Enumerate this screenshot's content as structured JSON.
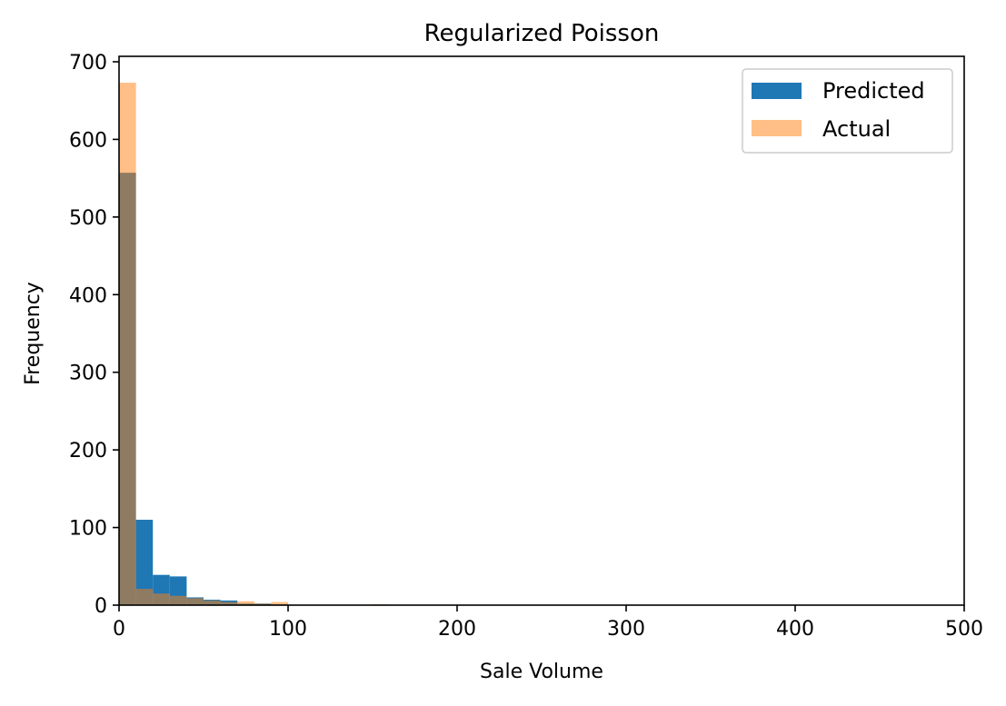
{
  "chart_data": {
    "type": "bar",
    "title": "Regularized Poisson",
    "xlabel": "Sale Volume",
    "ylabel": "Frequency",
    "xlim": [
      0,
      500
    ],
    "ylim": [
      0,
      707
    ],
    "xticks": [
      0,
      100,
      200,
      300,
      400,
      500
    ],
    "yticks": [
      0,
      100,
      200,
      300,
      400,
      500,
      600,
      700
    ],
    "grid": false,
    "legend_position": "top-right",
    "series": [
      {
        "name": "Predicted",
        "color": "#1f77b4",
        "opacity": 1.0,
        "bin_width": 10,
        "bins": [
          {
            "x0": 0,
            "x1": 10,
            "count": 557
          },
          {
            "x0": 10,
            "x1": 20,
            "count": 110
          },
          {
            "x0": 20,
            "x1": 30,
            "count": 39
          },
          {
            "x0": 30,
            "x1": 40,
            "count": 37
          },
          {
            "x0": 40,
            "x1": 50,
            "count": 10
          },
          {
            "x0": 50,
            "x1": 60,
            "count": 7
          },
          {
            "x0": 60,
            "x1": 70,
            "count": 6
          },
          {
            "x0": 70,
            "x1": 80,
            "count": 2
          },
          {
            "x0": 80,
            "x1": 90,
            "count": 2
          },
          {
            "x0": 90,
            "x1": 100,
            "count": 1
          }
        ]
      },
      {
        "name": "Actual",
        "color": "#ff7f0e",
        "opacity": 0.5,
        "bin_width": 10,
        "bins": [
          {
            "x0": 0,
            "x1": 10,
            "count": 673
          },
          {
            "x0": 10,
            "x1": 20,
            "count": 21
          },
          {
            "x0": 20,
            "x1": 30,
            "count": 15
          },
          {
            "x0": 30,
            "x1": 40,
            "count": 12
          },
          {
            "x0": 40,
            "x1": 50,
            "count": 9
          },
          {
            "x0": 50,
            "x1": 60,
            "count": 6
          },
          {
            "x0": 60,
            "x1": 70,
            "count": 4
          },
          {
            "x0": 70,
            "x1": 80,
            "count": 5
          },
          {
            "x0": 80,
            "x1": 90,
            "count": 2
          },
          {
            "x0": 90,
            "x1": 100,
            "count": 4
          },
          {
            "x0": 150,
            "x1": 160,
            "count": 1
          }
        ]
      }
    ]
  }
}
